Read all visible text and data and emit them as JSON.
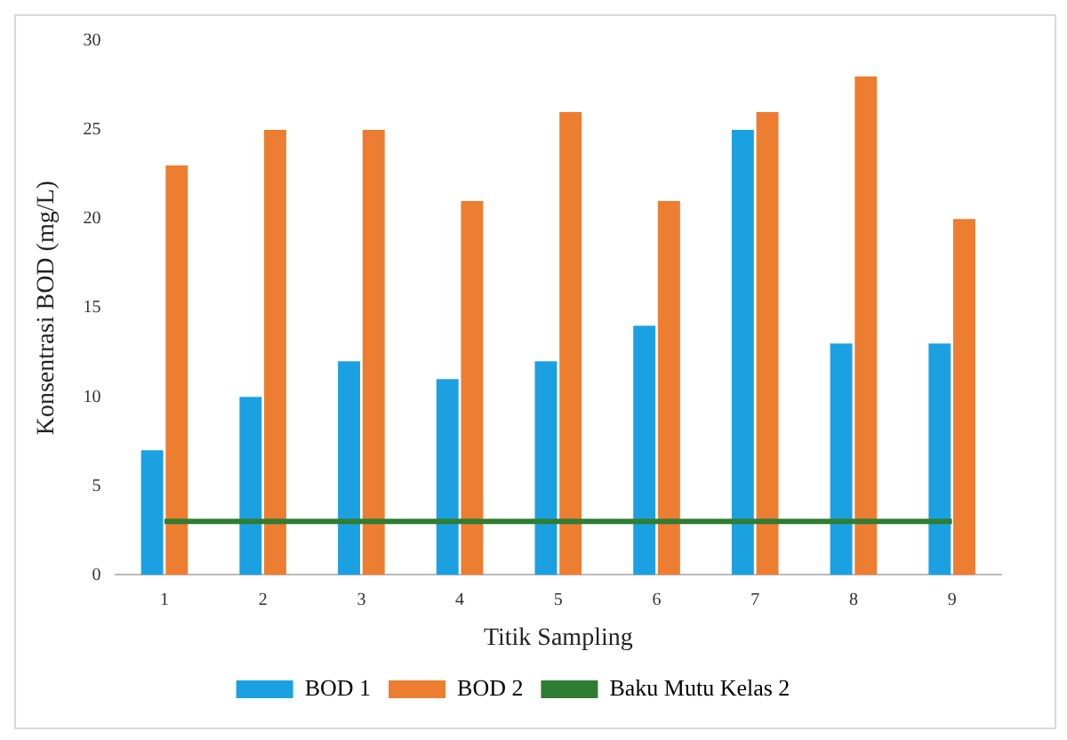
{
  "chart_data": {
    "type": "bar",
    "xlabel": "Titik Sampling",
    "ylabel": "Konsentrasi BOD (mg/L)",
    "categories": [
      "1",
      "2",
      "3",
      "4",
      "5",
      "6",
      "7",
      "8",
      "9"
    ],
    "series": [
      {
        "name": "BOD 1",
        "color": "#1ba1e2",
        "values": [
          7,
          10,
          12,
          11,
          12,
          14,
          25,
          13,
          13
        ]
      },
      {
        "name": "BOD 2",
        "color": "#ed7d31",
        "values": [
          23,
          25,
          25,
          21,
          26,
          21,
          26,
          28,
          20
        ]
      },
      {
        "name": "Baku Mutu Kelas 2",
        "type": "line",
        "color": "#2e7d32",
        "values": [
          3,
          3,
          3,
          3,
          3,
          3,
          3,
          3,
          3
        ]
      }
    ],
    "ylim": [
      0,
      30
    ],
    "yticks": [
      0,
      5,
      10,
      15,
      20,
      25,
      30
    ],
    "grid": false,
    "legend": "bottom",
    "marker": "none"
  }
}
